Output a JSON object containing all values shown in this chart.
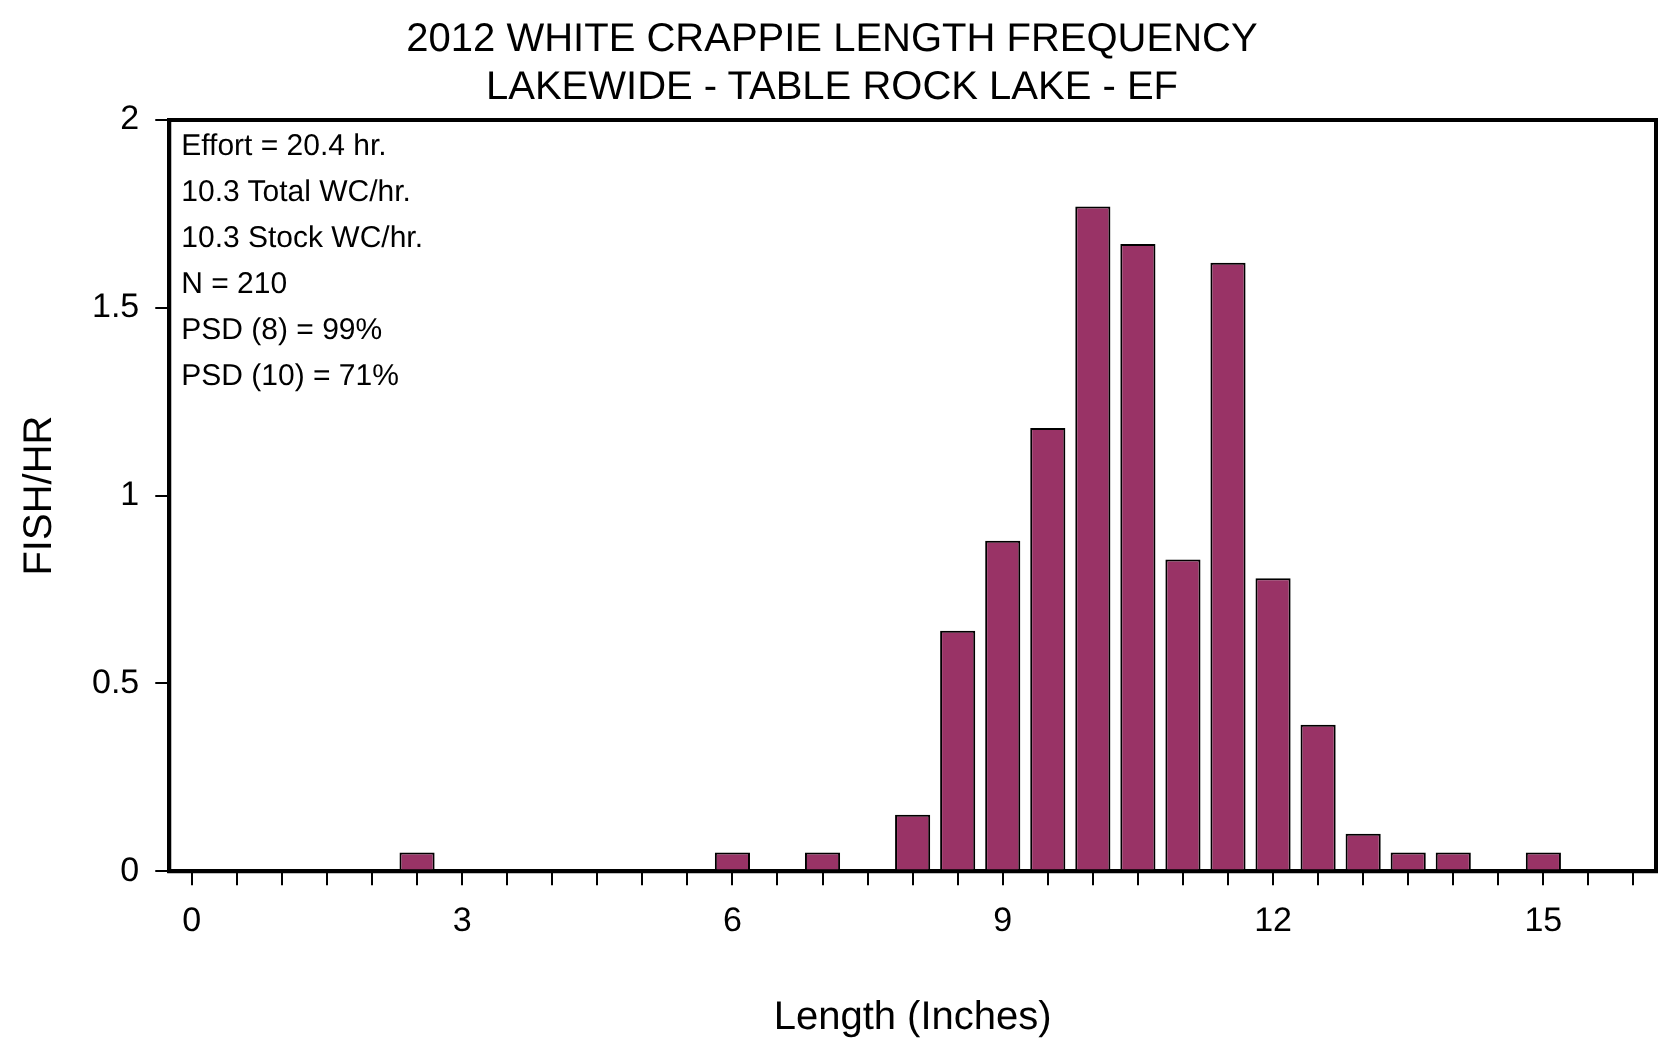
{
  "chart_data": {
    "type": "bar",
    "title": "2012 WHITE CRAPPIE LENGTH FREQUENCY",
    "subtitle": "LAKEWIDE - TABLE ROCK LAKE - EF",
    "xlabel": "Length (Inches)",
    "ylabel": "FISH/HR",
    "annotations": [
      "Effort = 20.4 hr.",
      "10.3 Total WC/hr.",
      "10.3 Stock WC/hr.",
      "N = 210",
      "PSD (8) = 99%",
      "PSD (10) = 71%"
    ],
    "x": [
      2.5,
      6,
      7,
      8,
      8.5,
      9,
      9.5,
      10,
      10.5,
      11,
      11.5,
      12,
      12.5,
      13,
      13.5,
      14,
      15
    ],
    "values": [
      0.05,
      0.05,
      0.05,
      0.15,
      0.64,
      0.88,
      1.18,
      1.77,
      1.67,
      0.83,
      1.62,
      0.78,
      0.39,
      0.1,
      0.05,
      0.05,
      0.05
    ],
    "color": "#993366",
    "xlim": [
      -0.25,
      16.25
    ],
    "xticks": [
      0,
      {
        "value": 0.5,
        "label": null
      },
      {
        "value": 1,
        "label": null
      },
      {
        "value": 1.5,
        "label": null
      },
      {
        "value": 2,
        "label": null
      },
      {
        "value": 2.5,
        "label": null
      },
      3,
      {
        "value": 3.5,
        "label": null
      },
      {
        "value": 4,
        "label": null
      },
      {
        "value": 4.5,
        "label": null
      },
      {
        "value": 5,
        "label": null
      },
      {
        "value": 5.5,
        "label": null
      },
      6,
      {
        "value": 6.5,
        "label": null
      },
      {
        "value": 7,
        "label": null
      },
      {
        "value": 7.5,
        "label": null
      },
      {
        "value": 8,
        "label": null
      },
      {
        "value": 8.5,
        "label": null
      },
      9,
      {
        "value": 9.5,
        "label": null
      },
      {
        "value": 10,
        "label": null
      },
      {
        "value": 10.5,
        "label": null
      },
      {
        "value": 11,
        "label": null
      },
      {
        "value": 11.5,
        "label": null
      },
      12,
      {
        "value": 12.5,
        "label": null
      },
      {
        "value": 13,
        "label": null
      },
      {
        "value": 13.5,
        "label": null
      },
      {
        "value": 14,
        "label": null
      },
      {
        "value": 14.5,
        "label": null
      },
      15,
      {
        "value": 15.5,
        "label": null
      },
      {
        "value": 16,
        "label": null
      }
    ],
    "ylim": [
      0,
      2
    ],
    "yticks": [
      0,
      0.5,
      1,
      1.5,
      2
    ],
    "grid": false,
    "legend": false
  }
}
